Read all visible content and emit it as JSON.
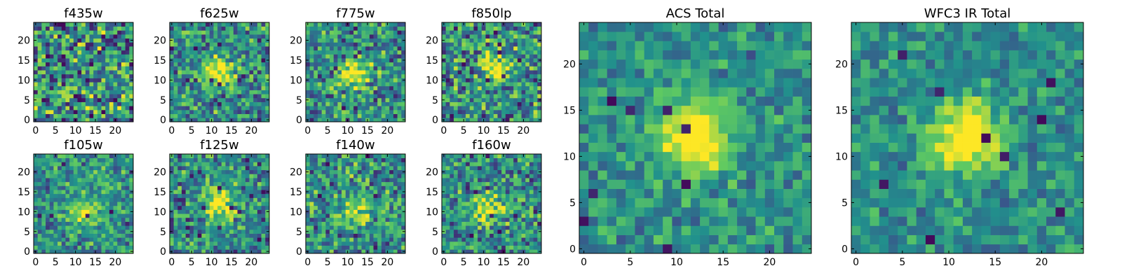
{
  "figure": {
    "colormap": "viridis",
    "colormap_stops": [
      "#440154",
      "#3b528b",
      "#21918c",
      "#5ec962",
      "#fde725"
    ]
  },
  "chart_data": [
    {
      "type": "heatmap",
      "title": "f435w",
      "grid_size": 25,
      "xlim": [
        0,
        25
      ],
      "ylim": [
        0,
        25
      ],
      "xticks": [
        0,
        5,
        10,
        15,
        20
      ],
      "yticks": [
        0,
        5,
        10,
        15,
        20
      ],
      "source_center": null,
      "source_peak": 0.0,
      "noise_level": 0.62,
      "dark_pixel_rate": 0.05,
      "seed": 11
    },
    {
      "type": "heatmap",
      "title": "f625w",
      "grid_size": 25,
      "xlim": [
        0,
        25
      ],
      "ylim": [
        0,
        25
      ],
      "xticks": [
        0,
        5,
        10,
        15,
        20
      ],
      "yticks": [
        0,
        5,
        10,
        15,
        20
      ],
      "source_center": [
        12,
        12
      ],
      "source_peak": 0.55,
      "noise_level": 0.48,
      "dark_pixel_rate": 0.03,
      "seed": 23
    },
    {
      "type": "heatmap",
      "title": "f775w",
      "grid_size": 25,
      "xlim": [
        0,
        25
      ],
      "ylim": [
        0,
        25
      ],
      "xticks": [
        0,
        5,
        10,
        15,
        20
      ],
      "yticks": [
        0,
        5,
        10,
        15,
        20
      ],
      "source_center": [
        12,
        12
      ],
      "source_peak": 0.5,
      "noise_level": 0.5,
      "dark_pixel_rate": 0.03,
      "seed": 37
    },
    {
      "type": "heatmap",
      "title": "f850lp",
      "grid_size": 25,
      "xlim": [
        0,
        25
      ],
      "ylim": [
        0,
        25
      ],
      "xticks": [
        0,
        5,
        10,
        15,
        20
      ],
      "yticks": [
        0,
        5,
        10,
        15,
        20
      ],
      "source_center": [
        13,
        13
      ],
      "source_peak": 0.45,
      "noise_level": 0.55,
      "dark_pixel_rate": 0.03,
      "seed": 41
    },
    {
      "type": "heatmap",
      "title": "f105w",
      "grid_size": 25,
      "xlim": [
        0,
        25
      ],
      "ylim": [
        0,
        25
      ],
      "xticks": [
        0,
        5,
        10,
        15,
        20
      ],
      "yticks": [
        0,
        5,
        10,
        15,
        20
      ],
      "source_center": [
        12,
        10
      ],
      "source_peak": 0.45,
      "noise_level": 0.42,
      "dark_pixel_rate": 0.02,
      "seed": 53
    },
    {
      "type": "heatmap",
      "title": "f125w",
      "grid_size": 25,
      "xlim": [
        0,
        25
      ],
      "ylim": [
        0,
        25
      ],
      "xticks": [
        0,
        5,
        10,
        15,
        20
      ],
      "yticks": [
        0,
        5,
        10,
        15,
        20
      ],
      "source_center": [
        12,
        12
      ],
      "source_peak": 0.5,
      "noise_level": 0.45,
      "dark_pixel_rate": 0.03,
      "seed": 67
    },
    {
      "type": "heatmap",
      "title": "f140w",
      "grid_size": 25,
      "xlim": [
        0,
        25
      ],
      "ylim": [
        0,
        25
      ],
      "xticks": [
        0,
        5,
        10,
        15,
        20
      ],
      "yticks": [
        0,
        5,
        10,
        15,
        20
      ],
      "source_center": [
        12,
        10
      ],
      "source_peak": 0.4,
      "noise_level": 0.5,
      "dark_pixel_rate": 0.02,
      "seed": 79
    },
    {
      "type": "heatmap",
      "title": "f160w",
      "grid_size": 25,
      "xlim": [
        0,
        25
      ],
      "ylim": [
        0,
        25
      ],
      "xticks": [
        0,
        5,
        10,
        15,
        20
      ],
      "yticks": [
        0,
        5,
        10,
        15,
        20
      ],
      "source_center": [
        11,
        11
      ],
      "source_peak": 0.45,
      "noise_level": 0.48,
      "dark_pixel_rate": 0.03,
      "seed": 83
    },
    {
      "type": "heatmap",
      "title": "ACS Total",
      "grid_size": 25,
      "xlim": [
        0,
        25
      ],
      "ylim": [
        0,
        25
      ],
      "xticks": [
        0,
        5,
        10,
        15,
        20
      ],
      "yticks": [
        0,
        5,
        10,
        15,
        20
      ],
      "source_center": [
        12,
        12
      ],
      "source_peak": 0.7,
      "noise_level": 0.32,
      "dark_pixel_rate": 0.02,
      "seed": 97
    },
    {
      "type": "heatmap",
      "title": "WFC3 IR Total",
      "grid_size": 25,
      "xlim": [
        0,
        25
      ],
      "ylim": [
        0,
        25
      ],
      "xticks": [
        0,
        5,
        10,
        15,
        20
      ],
      "yticks": [
        0,
        5,
        10,
        15,
        20
      ],
      "source_center": [
        12,
        12
      ],
      "source_peak": 0.7,
      "noise_level": 0.3,
      "dark_pixel_rate": 0.015,
      "seed": 101
    }
  ]
}
